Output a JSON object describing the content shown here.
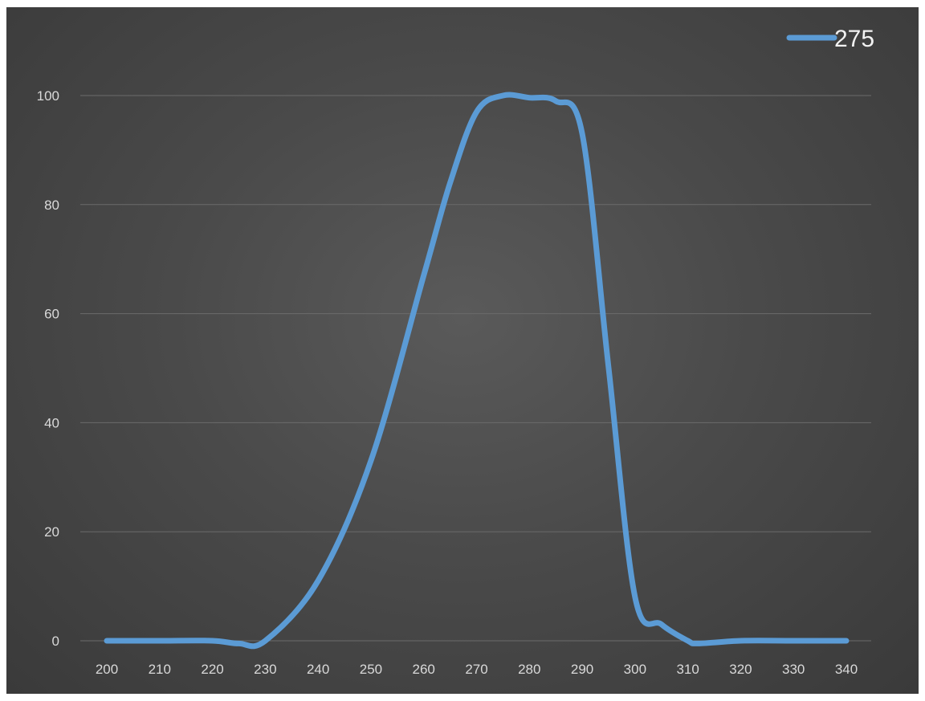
{
  "chart_data": {
    "type": "line",
    "title": "",
    "xlabel": "",
    "ylabel": "",
    "x": [
      200,
      210,
      220,
      225,
      230,
      240,
      250,
      260,
      265,
      270,
      275,
      280,
      285,
      290,
      295,
      300,
      305,
      310,
      312,
      320,
      330,
      340
    ],
    "series": [
      {
        "name": "275",
        "color": "#5b9bd5",
        "values": [
          0,
          0,
          0,
          -0.5,
          0,
          11,
          33,
          67,
          84,
          97,
          100,
          99.6,
          99,
          93,
          50,
          8,
          3,
          0,
          -0.5,
          0,
          0,
          0
        ]
      }
    ],
    "xticks": [
      "200",
      "210",
      "220",
      "230",
      "240",
      "250",
      "260",
      "270",
      "280",
      "290",
      "300",
      "310",
      "320",
      "330",
      "340"
    ],
    "yticks": [
      "0",
      "20",
      "40",
      "60",
      "80",
      "100"
    ],
    "xlim": [
      200,
      340
    ],
    "ylim": [
      0,
      100
    ],
    "grid": true,
    "legend_position": "top-right",
    "smooth": true
  }
}
